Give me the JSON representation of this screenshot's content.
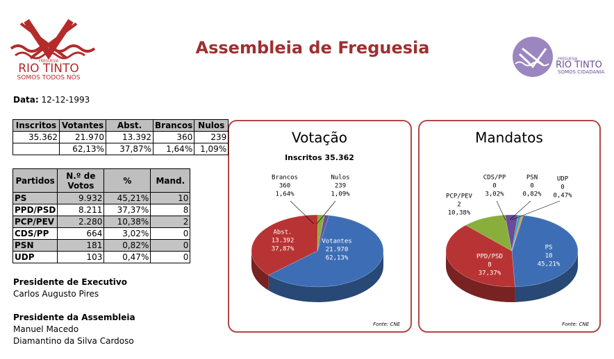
{
  "header": {
    "title": "Assembleia de Freguesia",
    "logo_left": {
      "line1": "FREGUESIA",
      "line2": "RIO TINTO",
      "line3": "SOMOS TODOS NÓS"
    },
    "logo_right": {
      "line1": "FREGUESIA",
      "line2": "RIO TINTO",
      "line3": "SOMOS CIDADANIA"
    }
  },
  "date": {
    "label": "Data:",
    "value": "12-12-1993"
  },
  "summary_table": {
    "header": [
      "Inscritos",
      "Votantes",
      "Abst.",
      "Brancos",
      "Nulos"
    ],
    "rows": [
      [
        "35.362",
        "21.970",
        "13.392",
        "360",
        "239"
      ],
      [
        null,
        "62,13%",
        "37,87%",
        "1,64%",
        "1,09%"
      ]
    ]
  },
  "parties_table": {
    "header": [
      "Partidos",
      "N.º de Votos",
      "%",
      "Mand."
    ],
    "rows": [
      [
        "PS",
        "9.932",
        "45,21%",
        "10"
      ],
      [
        "PPD/PSD",
        "8.211",
        "37,37%",
        "8"
      ],
      [
        "PCP/PEV",
        "2.280",
        "10,38%",
        "2"
      ],
      [
        "CDS/PP",
        "664",
        "3,02%",
        "0"
      ],
      [
        "PSN",
        "181",
        "0,82%",
        "0"
      ],
      [
        "UDP",
        "103",
        "0,47%",
        "0"
      ]
    ]
  },
  "people": [
    {
      "role": "Presidente de Executivo",
      "names": [
        "Carlos Augusto Pires"
      ]
    },
    {
      "role": "Presidente da Assembleia",
      "names": [
        "Manuel Macedo",
        "Diamantino da Silva Cardoso"
      ]
    }
  ],
  "chart_data": [
    {
      "type": "pie",
      "title": "Votação",
      "subtitle": "Inscritos 35.362",
      "source": "Fonte: CNE",
      "categories": [
        "Votantes",
        "Abst.",
        "Brancos",
        "Nulos"
      ],
      "count_labels": [
        "21.970",
        "13.392",
        "360",
        "239"
      ],
      "values": [
        62.13,
        37.87,
        1.64,
        1.09
      ],
      "value_labels": [
        "62,13%",
        "37,87%",
        "1,64%",
        "1,09%"
      ],
      "colors": [
        "#3d6eb5",
        "#b83434",
        "#8aae3c",
        "#6b4c98"
      ]
    },
    {
      "type": "pie",
      "title": "Mandatos",
      "source": "Fonte: CNE",
      "categories": [
        "PS",
        "PPD/PSD",
        "PCP/PEV",
        "CDS/PP",
        "PSN",
        "UDP"
      ],
      "count_labels": [
        "10",
        "8",
        "2",
        "0",
        "0",
        "0"
      ],
      "values": [
        45.21,
        37.37,
        10.38,
        3.02,
        0.82,
        0.47
      ],
      "value_labels": [
        "45,21%",
        "37,37%",
        "10,38%",
        "3,02%",
        "0,82%",
        "0,47%"
      ],
      "colors": [
        "#3d6eb5",
        "#b83434",
        "#8aae3c",
        "#6b4c98",
        "#3fa2c4",
        "#e8912e"
      ]
    }
  ]
}
